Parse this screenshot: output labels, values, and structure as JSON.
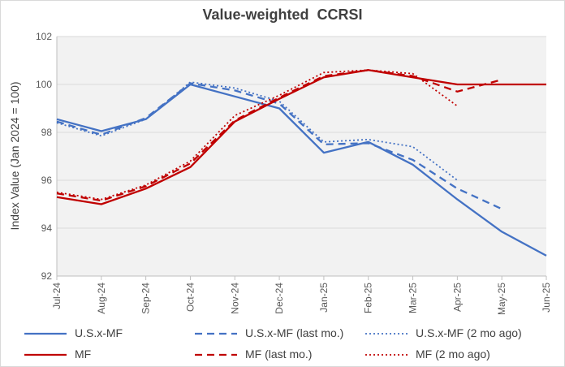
{
  "chart_data": {
    "type": "line",
    "title": "Value-weighted  CCRSI",
    "ylabel": "Index Value (Jan 2024 = 100)",
    "xlabel": "",
    "ylim": [
      92,
      102
    ],
    "yticks": [
      92,
      94,
      96,
      98,
      100,
      102
    ],
    "grid": true,
    "legend_position": "bottom",
    "categories": [
      "Jul-24",
      "Aug-24",
      "Sep-24",
      "Oct-24",
      "Nov-24",
      "Dec-24",
      "Jan-25",
      "Feb-25",
      "Mar-25",
      "Apr-25",
      "May-25",
      "Jun-25"
    ],
    "series": [
      {
        "name": "U.S.x-MF",
        "color": "#4472C4",
        "dash": "solid",
        "values": [
          98.55,
          98.05,
          98.55,
          100.0,
          99.5,
          99.0,
          97.15,
          97.6,
          96.65,
          95.2,
          93.85,
          92.85
        ]
      },
      {
        "name": "U.S.x-MF (last mo.)",
        "color": "#4472C4",
        "dash": "dashed",
        "values": [
          98.45,
          97.9,
          98.6,
          100.05,
          99.75,
          99.2,
          97.5,
          97.55,
          96.85,
          95.65,
          94.8,
          null
        ]
      },
      {
        "name": "U.S.x-MF (2 mo ago)",
        "color": "#4472C4",
        "dash": "dotted",
        "values": [
          98.4,
          97.85,
          98.55,
          100.1,
          99.85,
          99.3,
          97.6,
          97.7,
          97.4,
          96.0,
          null,
          null
        ]
      },
      {
        "name": "MF",
        "color": "#C00000",
        "dash": "solid",
        "values": [
          95.3,
          95.0,
          95.65,
          96.55,
          98.45,
          99.4,
          100.3,
          100.6,
          100.3,
          100.0,
          100.0,
          100.0
        ]
      },
      {
        "name": "MF (last mo.)",
        "color": "#C00000",
        "dash": "dashed",
        "values": [
          95.45,
          95.15,
          95.75,
          96.7,
          98.5,
          99.45,
          100.35,
          100.6,
          100.35,
          99.7,
          100.2,
          null
        ]
      },
      {
        "name": "MF (2 mo ago)",
        "color": "#C00000",
        "dash": "dotted",
        "values": [
          95.5,
          95.2,
          95.8,
          96.8,
          98.7,
          99.55,
          100.5,
          100.6,
          100.45,
          99.1,
          null,
          null
        ]
      }
    ]
  }
}
